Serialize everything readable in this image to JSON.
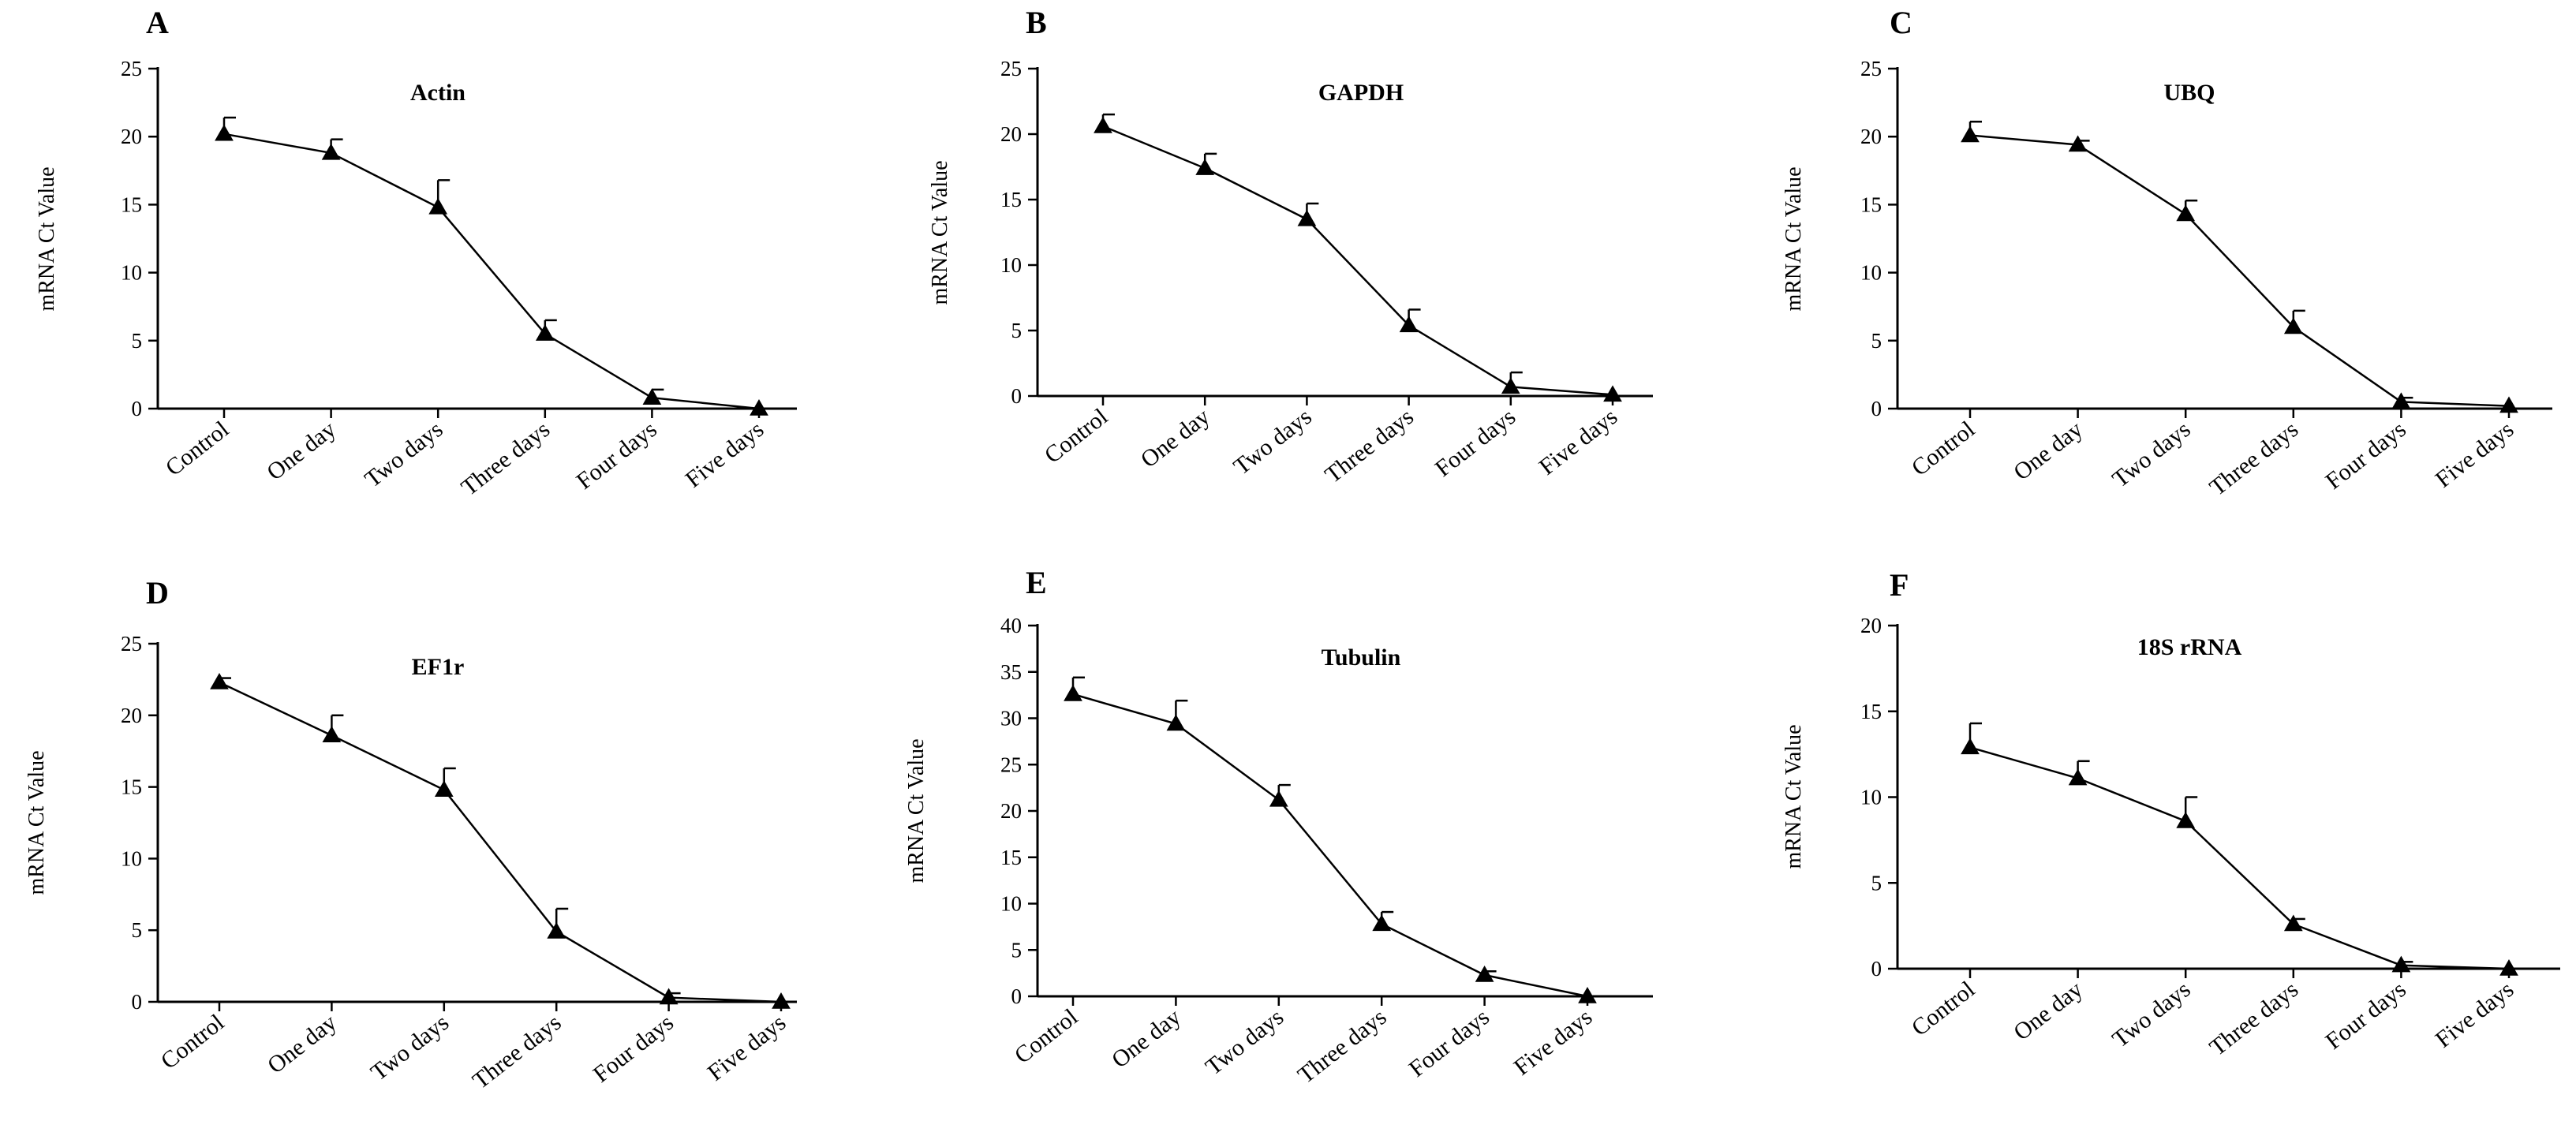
{
  "chart_data": [
    {
      "type": "line",
      "panel": "A",
      "title": "Actin",
      "ylabel": "mRNA Ct Value",
      "xlabel": "",
      "categories": [
        "Control",
        "One day",
        "Two days",
        "Three days",
        "Four days",
        "Five days"
      ],
      "ylim": [
        0,
        25
      ],
      "yticks": [
        0,
        5,
        10,
        15,
        20,
        25
      ],
      "values": [
        20.2,
        18.8,
        14.8,
        5.5,
        0.8,
        0
      ],
      "errors": [
        1.2,
        1.0,
        2.0,
        1.0,
        0.6,
        0
      ]
    },
    {
      "type": "line",
      "panel": "B",
      "title": "GAPDH",
      "ylabel": "mRNA Ct Value",
      "xlabel": "",
      "categories": [
        "Control",
        "One day",
        "Two days",
        "Three days",
        "Four days",
        "Five days"
      ],
      "ylim": [
        0,
        25
      ],
      "yticks": [
        0,
        5,
        10,
        15,
        20,
        25
      ],
      "values": [
        20.6,
        17.4,
        13.5,
        5.4,
        0.7,
        0.1
      ],
      "errors": [
        0.9,
        1.1,
        1.2,
        1.2,
        1.1,
        0
      ]
    },
    {
      "type": "line",
      "panel": "C",
      "title": "UBQ",
      "ylabel": "mRNA Ct Value",
      "xlabel": "",
      "categories": [
        "Control",
        "One day",
        "Two days",
        "Three days",
        "Four days",
        "Five days"
      ],
      "ylim": [
        0,
        25
      ],
      "yticks": [
        0,
        5,
        10,
        15,
        20,
        25
      ],
      "values": [
        20.1,
        19.4,
        14.3,
        6.0,
        0.5,
        0.2
      ],
      "errors": [
        1.0,
        0.3,
        1.0,
        1.2,
        0.3,
        0
      ]
    },
    {
      "type": "line",
      "panel": "D",
      "title": "EF1r",
      "ylabel": "mRNA Ct Value",
      "xlabel": "",
      "categories": [
        "Control",
        "One day",
        "Two days",
        "Three days",
        "Four days",
        "Five days"
      ],
      "ylim": [
        0,
        25
      ],
      "yticks": [
        0,
        5,
        10,
        15,
        20,
        25
      ],
      "values": [
        22.3,
        18.6,
        14.8,
        4.9,
        0.3,
        0
      ],
      "errors": [
        0.3,
        1.4,
        1.5,
        1.6,
        0.3,
        0
      ]
    },
    {
      "type": "line",
      "panel": "E",
      "title": "Tubulin",
      "ylabel": "mRNA Ct Value",
      "xlabel": "",
      "categories": [
        "Control",
        "One day",
        "Two days",
        "Three days",
        "Four days",
        "Five days"
      ],
      "ylim": [
        0,
        40
      ],
      "yticks": [
        0,
        5,
        10,
        15,
        20,
        25,
        30,
        35,
        40
      ],
      "values": [
        32.6,
        29.4,
        21.2,
        7.8,
        2.3,
        0
      ],
      "errors": [
        1.8,
        2.5,
        1.6,
        1.3,
        0.4,
        0
      ]
    },
    {
      "type": "line",
      "panel": "F",
      "title": "18S rRNA",
      "ylabel": "mRNA Ct Value",
      "xlabel": "",
      "categories": [
        "Control",
        "One day",
        "Two days",
        "Three days",
        "Four days",
        "Five days"
      ],
      "ylim": [
        0,
        20
      ],
      "yticks": [
        0,
        5,
        10,
        15,
        20
      ],
      "values": [
        12.9,
        11.1,
        8.6,
        2.6,
        0.2,
        0
      ],
      "errors": [
        1.4,
        1.0,
        1.4,
        0.3,
        0.2,
        0
      ]
    }
  ]
}
